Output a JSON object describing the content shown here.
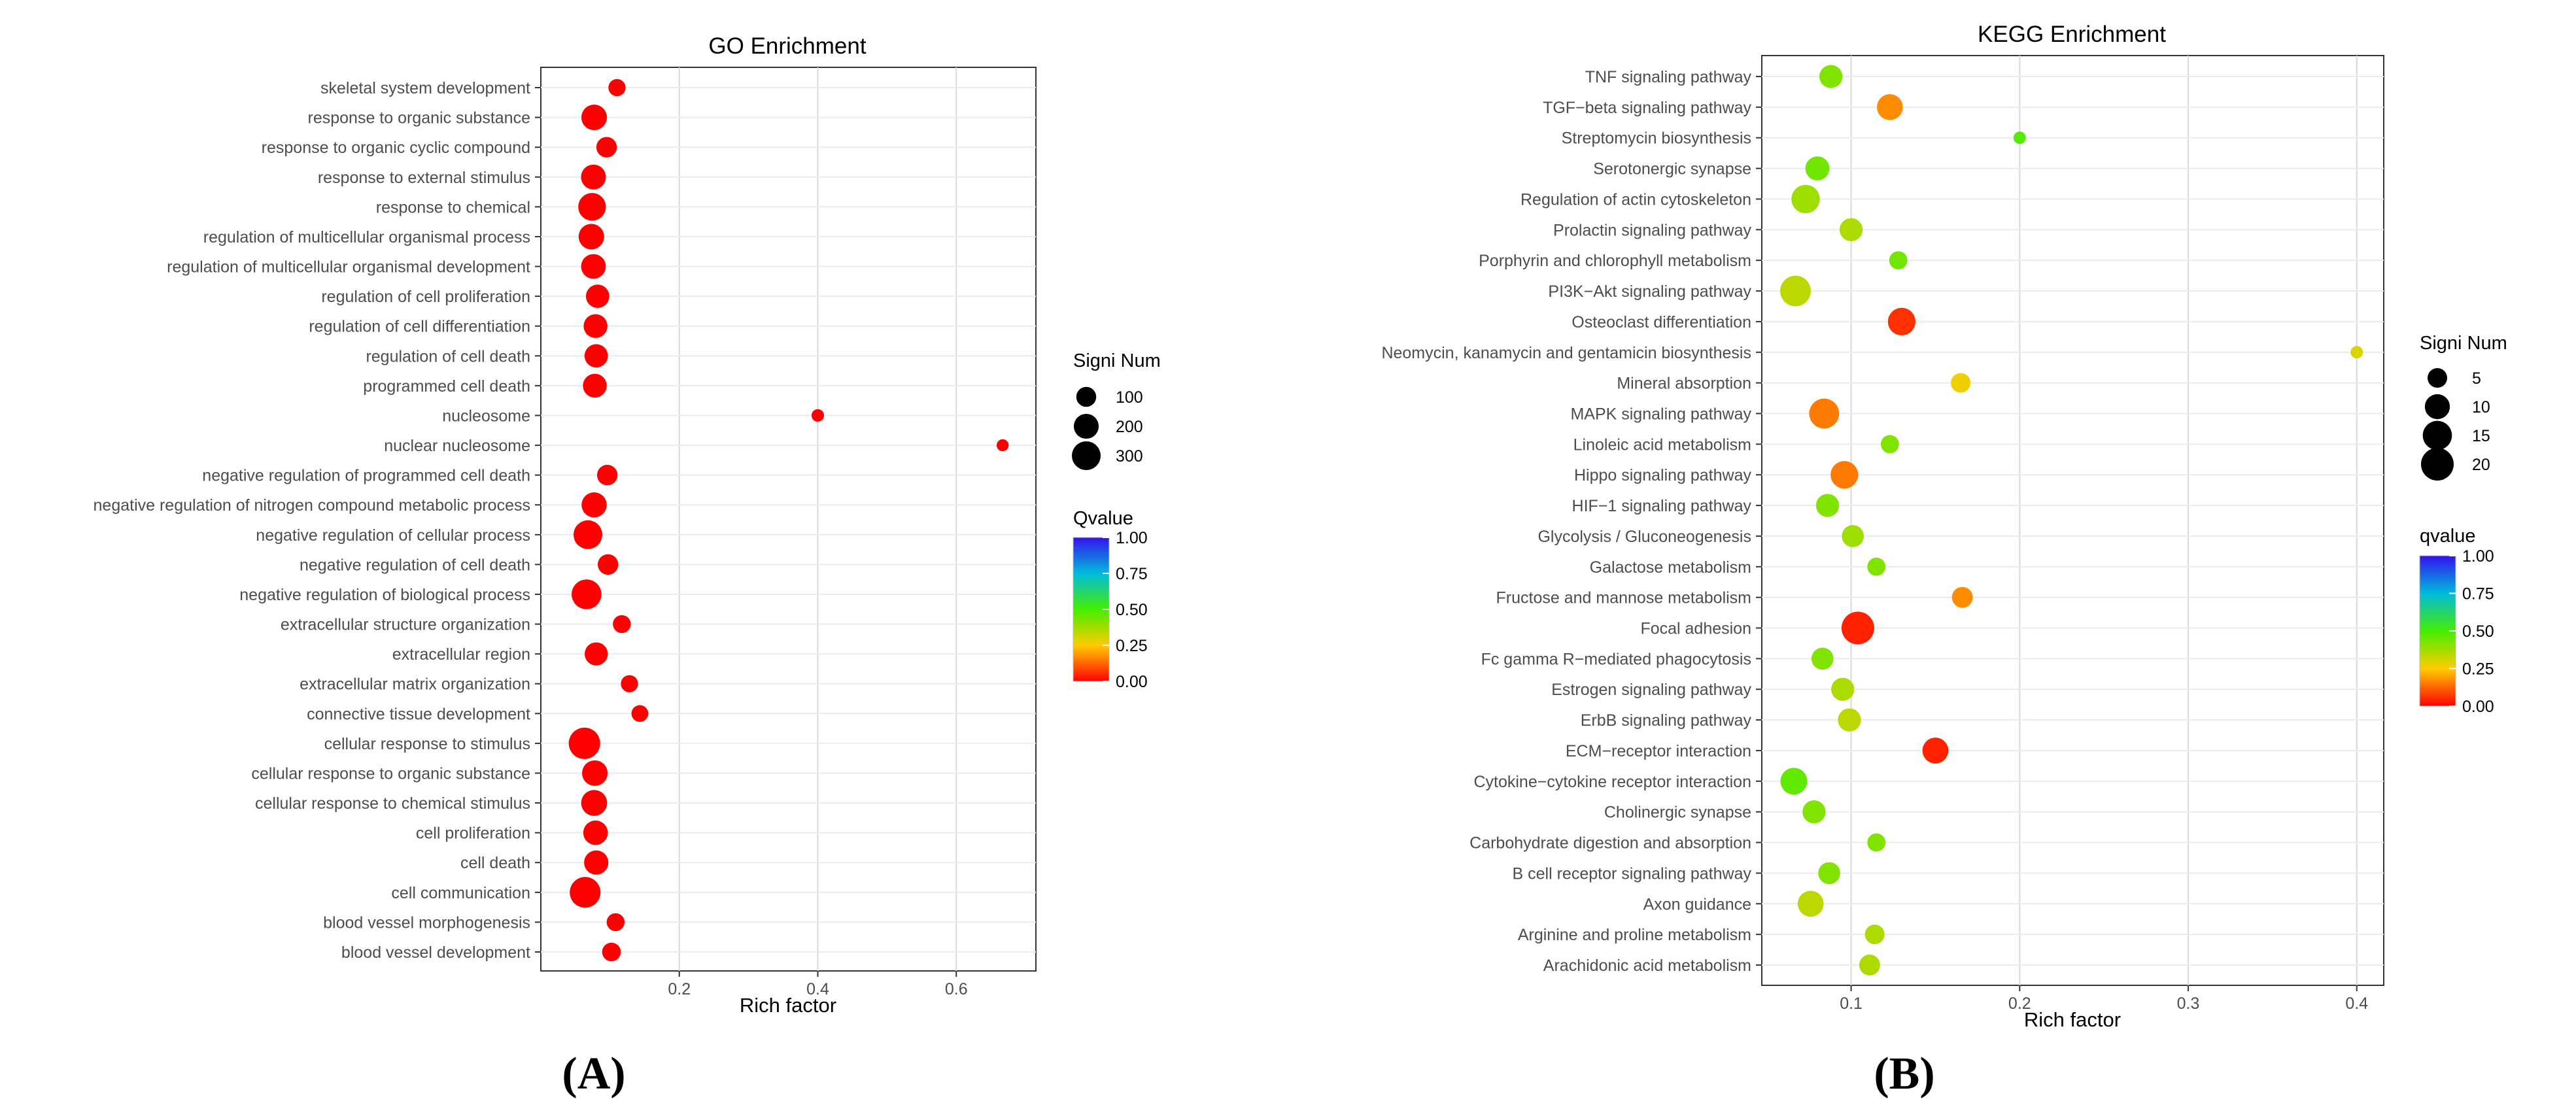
{
  "chart_data": [
    {
      "id": "go",
      "type": "scatter",
      "title": "GO Enrichment",
      "xlabel": "Rich factor",
      "ylabel": "",
      "xlim": [
        0.0,
        0.715
      ],
      "xticks": [
        0.2,
        0.4,
        0.6
      ],
      "xtick_labels": [
        "0.2",
        "0.4",
        "0.6"
      ],
      "grid": true,
      "categories": [
        "skeletal system development",
        "response to organic substance",
        "response to organic cyclic compound",
        "response to external stimulus",
        "response to chemical",
        "regulation of multicellular organismal process",
        "regulation of multicellular organismal development",
        "regulation of cell proliferation",
        "regulation of cell differentiation",
        "regulation of cell death",
        "programmed cell death",
        "nucleosome",
        "nuclear nucleosome",
        "negative regulation of programmed cell death",
        "negative regulation of nitrogen compound metabolic process",
        "negative regulation of cellular process",
        "negative regulation of cell death",
        "negative regulation of biological process",
        "extracellular structure organization",
        "extracellular region",
        "extracellular matrix organization",
        "connective tissue development",
        "cellular response to stimulus",
        "cellular response to organic substance",
        "cellular response to chemical stimulus",
        "cell proliferation",
        "cell death",
        "cell communication",
        "blood vessel morphogenesis",
        "blood vessel development"
      ],
      "rich_factor": [
        0.11,
        0.077,
        0.095,
        0.076,
        0.074,
        0.073,
        0.076,
        0.082,
        0.079,
        0.08,
        0.078,
        0.4,
        0.667,
        0.096,
        0.077,
        0.068,
        0.097,
        0.066,
        0.117,
        0.08,
        0.128,
        0.143,
        0.063,
        0.078,
        0.077,
        0.079,
        0.08,
        0.064,
        0.108,
        0.102
      ],
      "signi_num": [
        60,
        215,
        110,
        200,
        270,
        215,
        195,
        165,
        175,
        165,
        175,
        15,
        12,
        110,
        205,
        300,
        110,
        330,
        70,
        160,
        60,
        55,
        380,
        215,
        225,
        190,
        185,
        360,
        70,
        80
      ],
      "qvalue": [
        0,
        0,
        0,
        0,
        0,
        0,
        0,
        0,
        0,
        0,
        0,
        0,
        0,
        0,
        0,
        0,
        0,
        0,
        0,
        0,
        0,
        0,
        0,
        0,
        0,
        0,
        0,
        0,
        0,
        0
      ],
      "size_legend": {
        "title": "Signi Num",
        "values": [
          100,
          200,
          300
        ],
        "labels": [
          "100",
          "200",
          "300"
        ]
      },
      "color_legend": {
        "title": "Qvalue",
        "ticks": [
          1.0,
          0.75,
          0.5,
          0.25,
          0.0
        ],
        "labels": [
          "1.00",
          "0.75",
          "0.50",
          "0.25",
          "0.00"
        ]
      }
    },
    {
      "id": "kegg",
      "type": "scatter",
      "title": "KEGG Enrichment",
      "xlabel": "Rich factor",
      "ylabel": "",
      "xlim": [
        0.047,
        0.416
      ],
      "xticks": [
        0.1,
        0.2,
        0.3,
        0.4
      ],
      "xtick_labels": [
        "0.1",
        "0.2",
        "0.3",
        "0.4"
      ],
      "grid": true,
      "categories": [
        "TNF signaling pathway",
        "TGF−beta signaling pathway",
        "Streptomycin biosynthesis",
        "Serotonergic synapse",
        "Regulation of actin cytoskeleton",
        "Prolactin signaling pathway",
        "Porphyrin and chlorophyll metabolism",
        "PI3K−Akt signaling pathway",
        "Osteoclast differentiation",
        "Neomycin, kanamycin and gentamicin biosynthesis",
        "Mineral absorption",
        "MAPK signaling pathway",
        "Linoleic acid metabolism",
        "Hippo signaling pathway",
        "HIF−1 signaling pathway",
        "Glycolysis / Gluconeogenesis",
        "Galactose metabolism",
        "Fructose and mannose metabolism",
        "Focal adhesion",
        "Fc gamma R−mediated phagocytosis",
        "Estrogen signaling pathway",
        "ErbB signaling pathway",
        "ECM−receptor interaction",
        "Cytokine−cytokine receptor interaction",
        "Cholinergic synapse",
        "Carbohydrate digestion and absorption",
        "B cell receptor signaling pathway",
        "Axon guidance",
        "Arginine and proline metabolism",
        "Arachidonic acid metabolism"
      ],
      "rich_factor": [
        0.088,
        0.123,
        0.2,
        0.08,
        0.073,
        0.1,
        0.128,
        0.067,
        0.13,
        0.4,
        0.165,
        0.084,
        0.123,
        0.096,
        0.086,
        0.101,
        0.115,
        0.166,
        0.104,
        0.083,
        0.095,
        0.099,
        0.15,
        0.066,
        0.078,
        0.115,
        0.087,
        0.076,
        0.114,
        0.111
      ],
      "signi_num": [
        8,
        11,
        1,
        9,
        14,
        8,
        4,
        17,
        13,
        1,
        5,
        16,
        4,
        13,
        8,
        7,
        4,
        6,
        20,
        7,
        8,
        8,
        11,
        12,
        8,
        4,
        7,
        11,
        5,
        6
      ],
      "qvalue": [
        0.42,
        0.17,
        0.48,
        0.44,
        0.38,
        0.36,
        0.44,
        0.34,
        0.06,
        0.3,
        0.27,
        0.15,
        0.42,
        0.15,
        0.42,
        0.38,
        0.42,
        0.17,
        0.04,
        0.42,
        0.36,
        0.34,
        0.04,
        0.46,
        0.42,
        0.42,
        0.42,
        0.34,
        0.36,
        0.36
      ],
      "size_legend": {
        "title": "Signi Num",
        "values": [
          5,
          10,
          15,
          20
        ],
        "labels": [
          "5",
          "10",
          "15",
          "20"
        ]
      },
      "color_legend": {
        "title": "qvalue",
        "ticks": [
          1.0,
          0.75,
          0.5,
          0.25,
          0.0
        ],
        "labels": [
          "1.00",
          "0.75",
          "0.50",
          "0.25",
          "0.00"
        ]
      }
    }
  ],
  "panel_labels": {
    "a": "(A)",
    "b": "(B)"
  }
}
